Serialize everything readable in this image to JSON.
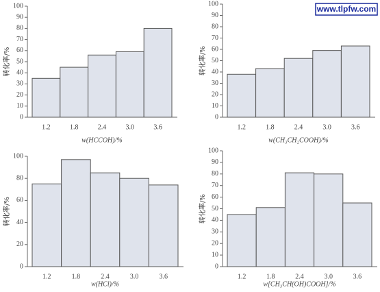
{
  "watermark": "www.tlpfw.com",
  "chart_data": [
    {
      "type": "bar",
      "x_label": "w(HCCOH)/%",
      "y_label": "转化率/%",
      "categories": [
        "1.2",
        "1.8",
        "2.4",
        "3.0",
        "3.6"
      ],
      "values": [
        35,
        45,
        56,
        59,
        80
      ],
      "color": "#dfe3ec",
      "ylim": [
        0,
        100
      ],
      "yticks": [
        0,
        10,
        20,
        30,
        40,
        50,
        60,
        70,
        80,
        90,
        100
      ]
    },
    {
      "type": "bar",
      "x_label": "w(CH₃CH₂COOH)/%",
      "y_label": "转化率/%",
      "categories": [
        "1.2",
        "1.8",
        "2.4",
        "3.0",
        "3.6"
      ],
      "values": [
        38,
        43,
        52,
        59,
        63
      ],
      "color": "#dfe3ec",
      "ylim": [
        0,
        100
      ],
      "yticks": [
        0,
        10,
        20,
        30,
        40,
        50,
        60,
        70,
        80,
        90,
        100
      ]
    },
    {
      "type": "bar",
      "x_label": "w(HCl)/%",
      "y_label": "转化率/%",
      "categories": [
        "1.2",
        "1.8",
        "2.4",
        "3.0",
        "3.6"
      ],
      "values": [
        75,
        97,
        85,
        80,
        74
      ],
      "color": "#dfe3ec",
      "ylim": [
        0,
        100
      ],
      "yticks": [
        0,
        20,
        40,
        60,
        80,
        100
      ]
    },
    {
      "type": "bar",
      "x_label": "w[CH₃CH(OH)COOH]/%",
      "y_label": "转化率/%",
      "categories": [
        "1.2",
        "1.8",
        "2.4",
        "3.0",
        "3.6"
      ],
      "values": [
        45,
        51,
        81,
        80,
        55
      ],
      "color": "#dfe3ec",
      "ylim": [
        0,
        100
      ],
      "yticks": [
        0,
        10,
        20,
        30,
        40,
        50,
        60,
        70,
        80,
        90,
        100
      ]
    }
  ]
}
